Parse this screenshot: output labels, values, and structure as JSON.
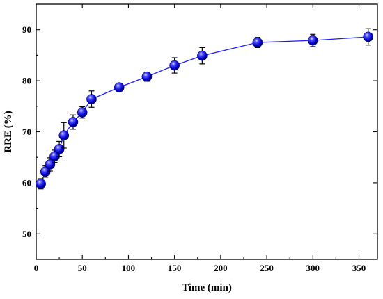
{
  "chart_data": {
    "type": "line",
    "xlabel": "Time (min)",
    "ylabel": "RRE (%)",
    "xlim": [
      0,
      370
    ],
    "ylim": [
      45,
      95
    ],
    "xticks": [
      0,
      50,
      100,
      150,
      200,
      250,
      300,
      350
    ],
    "yticks": [
      50,
      60,
      70,
      80,
      90
    ],
    "grid": false,
    "legend": "none",
    "series": [
      {
        "color": "#1a1aff",
        "marker": "sphere",
        "x": [
          5,
          10,
          15,
          20,
          25,
          30,
          40,
          50,
          60,
          90,
          120,
          150,
          180,
          240,
          300,
          360
        ],
        "y": [
          59.8,
          62.2,
          63.6,
          65.2,
          66.6,
          69.3,
          71.9,
          73.8,
          76.4,
          78.7,
          80.8,
          83.0,
          84.9,
          87.5,
          87.9,
          88.6
        ],
        "error": [
          1.0,
          1.1,
          1.3,
          1.2,
          1.5,
          2.5,
          1.4,
          1.1,
          1.6,
          0.5,
          0.9,
          1.5,
          1.6,
          1.0,
          1.2,
          1.6
        ]
      }
    ]
  }
}
